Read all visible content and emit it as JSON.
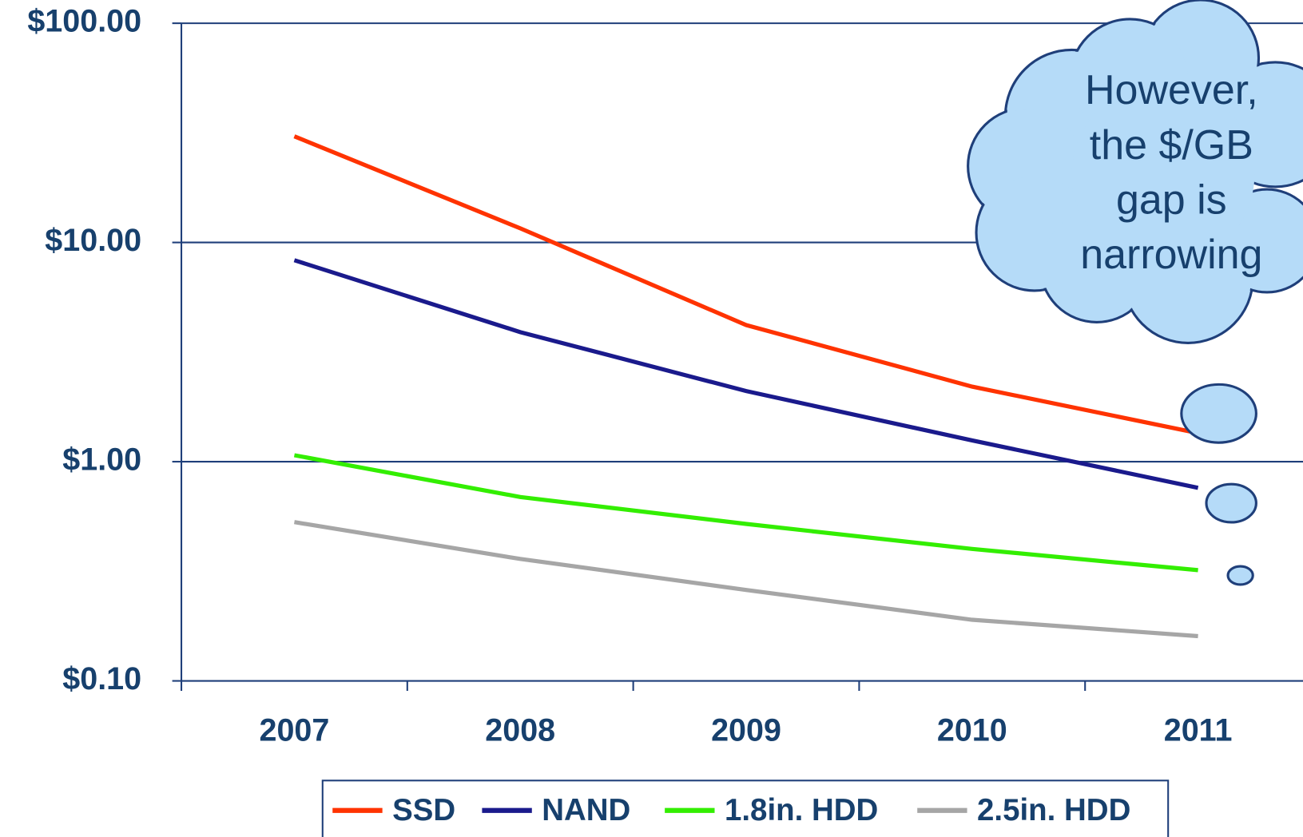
{
  "chart_data": {
    "type": "line",
    "categories": [
      "2007",
      "2008",
      "2009",
      "2010",
      "2011"
    ],
    "series": [
      {
        "name": "SSD",
        "color": "#ff3300",
        "values": [
          30.5,
          11.6,
          4.2,
          2.2,
          1.35
        ]
      },
      {
        "name": "NAND",
        "color": "#1a1a8c",
        "values": [
          8.3,
          3.9,
          2.1,
          1.25,
          0.76
        ]
      },
      {
        "name": "1.8in. HDD",
        "color": "#33ee00",
        "values": [
          1.07,
          0.69,
          0.52,
          0.4,
          0.32
        ]
      },
      {
        "name": "2.5in. HDD",
        "color": "#a6a6a6",
        "values": [
          0.53,
          0.36,
          0.26,
          0.19,
          0.16
        ]
      }
    ],
    "y_scale": "log",
    "ylim": [
      0.1,
      100
    ],
    "yticks": [
      {
        "value": 100,
        "label": "$100.00"
      },
      {
        "value": 10,
        "label": "$10.00"
      },
      {
        "value": 1,
        "label": "$1.00"
      },
      {
        "value": 0.1,
        "label": "$0.10"
      }
    ],
    "grid": true,
    "legend": "bottom",
    "annotation": [
      "However,",
      "the $/GB",
      "gap is",
      "narrowing"
    ]
  }
}
